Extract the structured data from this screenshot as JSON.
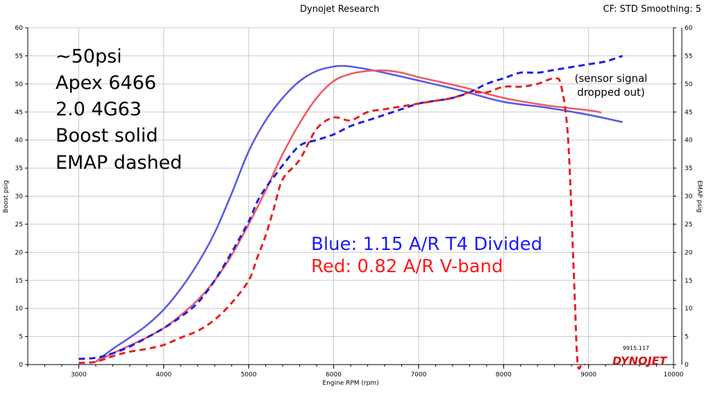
{
  "header": {
    "title": "Dynojet Research",
    "info": "CF: STD Smoothing: 5"
  },
  "colors": {
    "blue": "#5a5ae6",
    "blue_dashed": "#1f1fdc",
    "red": "#ee5c64",
    "red_dashed": "#e62020",
    "blue_text": "#1a1aff",
    "red_text": "#ff1a1a"
  },
  "watermark": {
    "run_id": "9915.117",
    "logo": "DYNOJET"
  },
  "chart_data": {
    "type": "line",
    "xlabel": "Engine RPM  (rpm)",
    "ylabel_left": "Boost psig",
    "ylabel_right": "EMAP psig",
    "xlim": [
      2400,
      10000
    ],
    "ylim": [
      0,
      60
    ],
    "xticks": [
      3000,
      4000,
      5000,
      6000,
      7000,
      8000,
      9000,
      10000
    ],
    "yticks": [
      0,
      5,
      10,
      15,
      20,
      25,
      30,
      35,
      40,
      45,
      50,
      55,
      60
    ],
    "grid": true,
    "annotations": {
      "notes": [
        "~50psi",
        "Apex 6466",
        "2.0 4G63",
        "Boost solid",
        "EMAP dashed"
      ],
      "legend_blue": "Blue: 1.15 A/R T4 Divided",
      "legend_red": "Red:  0.82 A/R V-band",
      "sensor_note": [
        "(sensor signal",
        "dropped out)"
      ]
    },
    "series": [
      {
        "name": "Blue: 1.15 A/R T4 Divided",
        "style": "solid",
        "color": "#5a5ae6",
        "x": [
          3200,
          3400,
          3600,
          3800,
          4000,
          4200,
          4400,
          4600,
          4800,
          5000,
          5200,
          5400,
          5600,
          5800,
          6000,
          6100,
          6200,
          6500,
          7000,
          7500,
          8000,
          8500,
          9000,
          9400
        ],
        "y": [
          0.5,
          2.8,
          4.8,
          7.0,
          9.8,
          13.5,
          18.0,
          23.5,
          30.5,
          38.0,
          43.5,
          47.5,
          50.5,
          52.3,
          53.1,
          53.2,
          53.1,
          52.3,
          50.6,
          48.8,
          46.8,
          45.8,
          44.5,
          43.2
        ]
      },
      {
        "name": "Red:  0.82 A/R V-band",
        "style": "solid",
        "color": "#ee5c64",
        "x": [
          3200,
          3400,
          3600,
          3800,
          4000,
          4200,
          4400,
          4600,
          4800,
          5000,
          5200,
          5400,
          5600,
          5800,
          6000,
          6200,
          6400,
          6600,
          6800,
          7000,
          7500,
          8000,
          8500,
          9000,
          9150
        ],
        "y": [
          0.5,
          2.0,
          3.4,
          4.8,
          6.5,
          8.8,
          11.5,
          15.0,
          19.5,
          25.0,
          31.0,
          37.5,
          43.0,
          47.5,
          50.5,
          51.8,
          52.3,
          52.4,
          52.0,
          51.2,
          49.5,
          47.5,
          46.2,
          45.3,
          44.9
        ]
      },
      {
        "name": "Blue EMAP",
        "style": "dashed",
        "color": "#1f1fdc",
        "x": [
          3000,
          3200,
          3400,
          3600,
          3800,
          4000,
          4200,
          4400,
          4600,
          4800,
          5000,
          5100,
          5200,
          5300,
          5400,
          5600,
          5800,
          6000,
          6200,
          6400,
          6600,
          6800,
          7000,
          7200,
          7400,
          7600,
          7800,
          8000,
          8200,
          8400,
          8600,
          8800,
          9000,
          9200,
          9400
        ],
        "y": [
          1.0,
          1.2,
          2.0,
          3.2,
          4.8,
          6.5,
          8.5,
          11.0,
          15.0,
          20.0,
          25.5,
          29.0,
          31.5,
          33.5,
          35.5,
          39.0,
          40.0,
          41.0,
          42.5,
          43.5,
          44.5,
          45.5,
          46.5,
          47.0,
          47.5,
          48.5,
          50.0,
          51.0,
          52.0,
          52.0,
          52.5,
          53.0,
          53.5,
          54.0,
          55.0
        ]
      },
      {
        "name": "Red EMAP",
        "style": "dashed",
        "color": "#e62020",
        "x": [
          3000,
          3200,
          3400,
          3600,
          3800,
          4000,
          4200,
          4400,
          4600,
          4800,
          5000,
          5100,
          5200,
          5300,
          5400,
          5600,
          5800,
          6000,
          6200,
          6400,
          6600,
          6800,
          7000,
          7200,
          7400,
          7600,
          7800,
          8000,
          8200,
          8400,
          8600,
          8680,
          8760,
          8830,
          8870,
          8920,
          8960
        ],
        "y": [
          0.3,
          0.5,
          1.5,
          2.3,
          2.8,
          3.5,
          4.8,
          6.0,
          8.0,
          11.0,
          15.0,
          19.0,
          23.0,
          28.0,
          33.0,
          36.5,
          42.0,
          44.0,
          43.5,
          45.0,
          45.5,
          46.0,
          46.5,
          47.0,
          47.5,
          48.5,
          48.5,
          49.5,
          49.5,
          50.0,
          51.0,
          49.5,
          40.0,
          15.0,
          0.5,
          0.0,
          0.0
        ]
      }
    ]
  }
}
